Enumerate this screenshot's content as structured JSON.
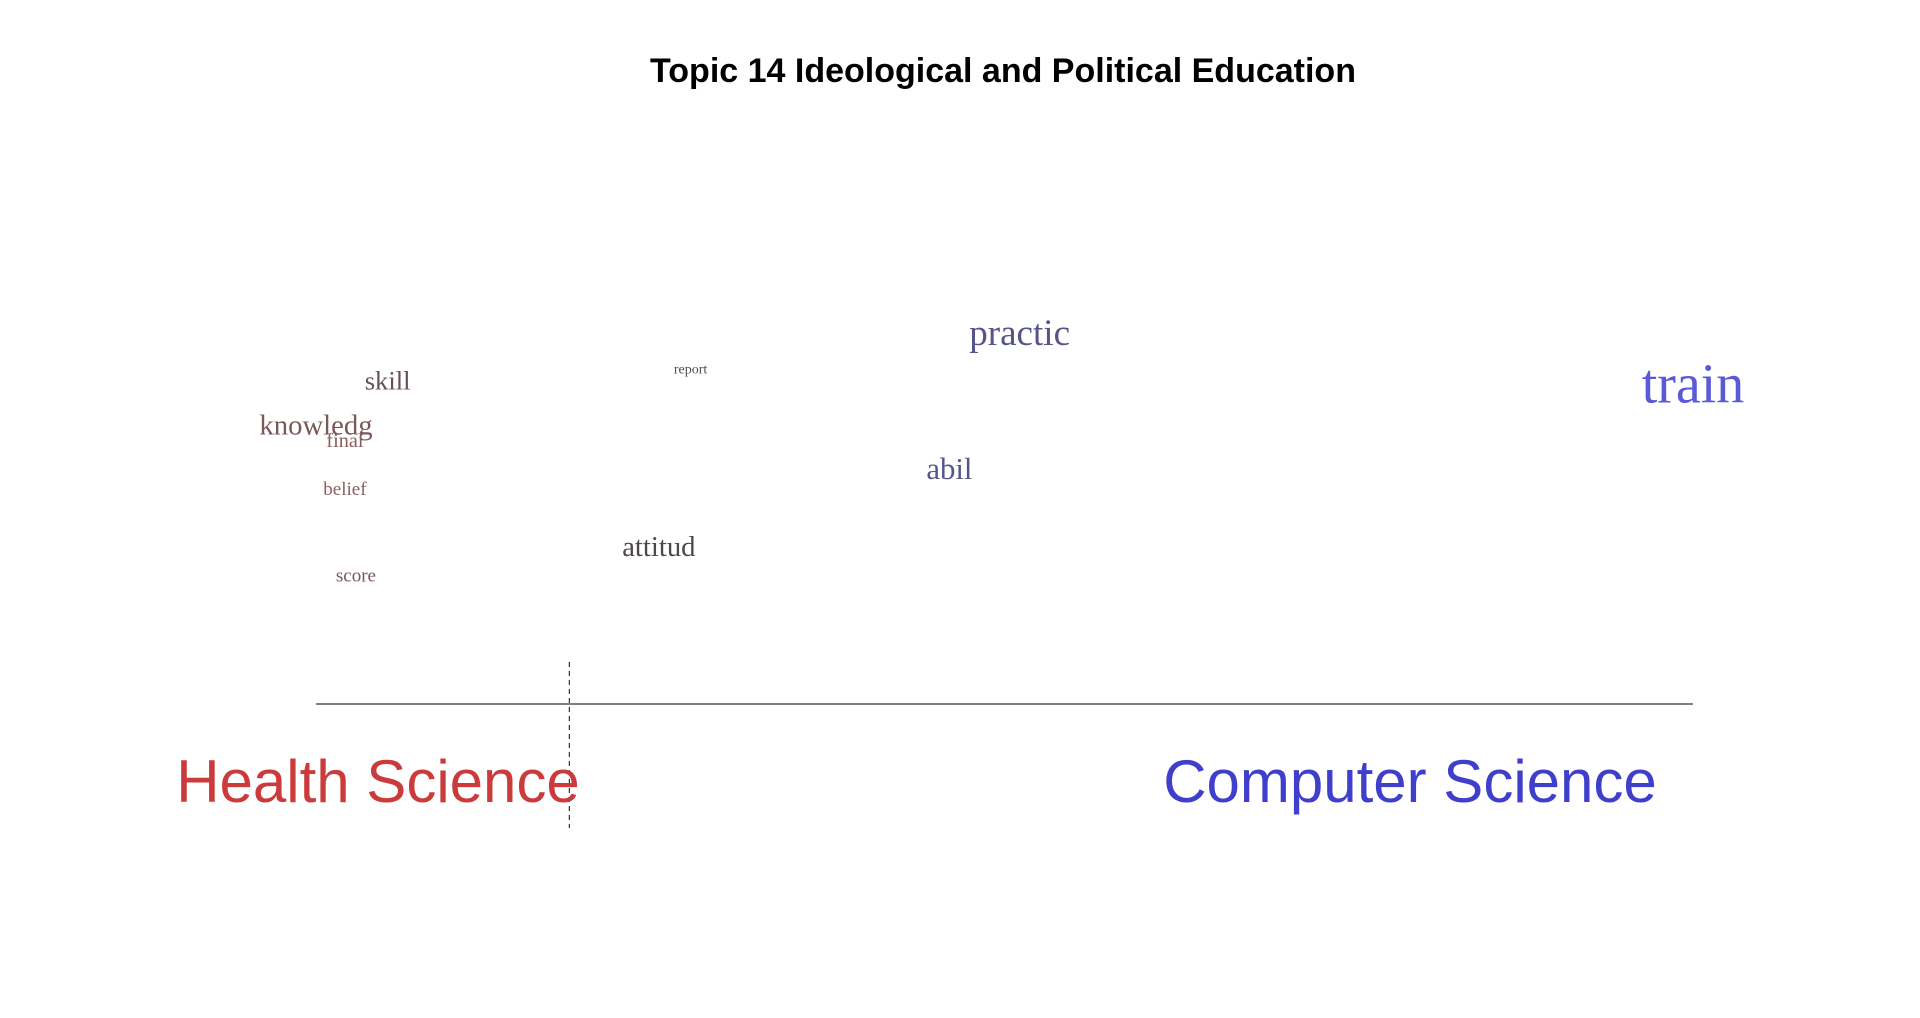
{
  "chart_data": {
    "type": "scatter",
    "title": "Topic 14 Ideological and Political Education",
    "xlabel": "",
    "ylabel": "",
    "xlim": [
      0,
      1
    ],
    "ylim": [
      0,
      1
    ],
    "grid": false,
    "legend": "none",
    "labels": {
      "left": "Health Science",
      "right": "Computer Science"
    },
    "colors": {
      "left": "#cc3b3b",
      "right": "#3f3fcc",
      "axis": "#333333",
      "baseline": "#000000"
    },
    "reference_x": 0.184,
    "words": [
      {
        "text": "practic",
        "x": 0.511,
        "y": 0.86,
        "weight": 0.55,
        "color": "#555588"
      },
      {
        "text": "train",
        "x": 1.0,
        "y": 0.68,
        "weight": 1.0,
        "color": "#5a5ad6"
      },
      {
        "text": "report",
        "x": 0.272,
        "y": 0.77,
        "weight": 0.0,
        "color": "#554d4d"
      },
      {
        "text": "skill",
        "x": 0.052,
        "y": 0.72,
        "weight": 0.3,
        "color": "#6a5050"
      },
      {
        "text": "knowledg",
        "x": 0.0,
        "y": 0.58,
        "weight": 0.35,
        "color": "#7a5858"
      },
      {
        "text": "final",
        "x": 0.021,
        "y": 0.54,
        "weight": 0.15,
        "color": "#8a5e5e"
      },
      {
        "text": "abil",
        "x": 0.46,
        "y": 0.44,
        "weight": 0.4,
        "color": "#555588"
      },
      {
        "text": "belief",
        "x": 0.021,
        "y": 0.39,
        "weight": 0.12,
        "color": "#8a5e5e"
      },
      {
        "text": "attitud",
        "x": 0.249,
        "y": 0.2,
        "weight": 0.35,
        "color": "#4e4848"
      },
      {
        "text": "score",
        "x": 0.029,
        "y": 0.12,
        "weight": 0.12,
        "color": "#7a5858"
      }
    ]
  }
}
